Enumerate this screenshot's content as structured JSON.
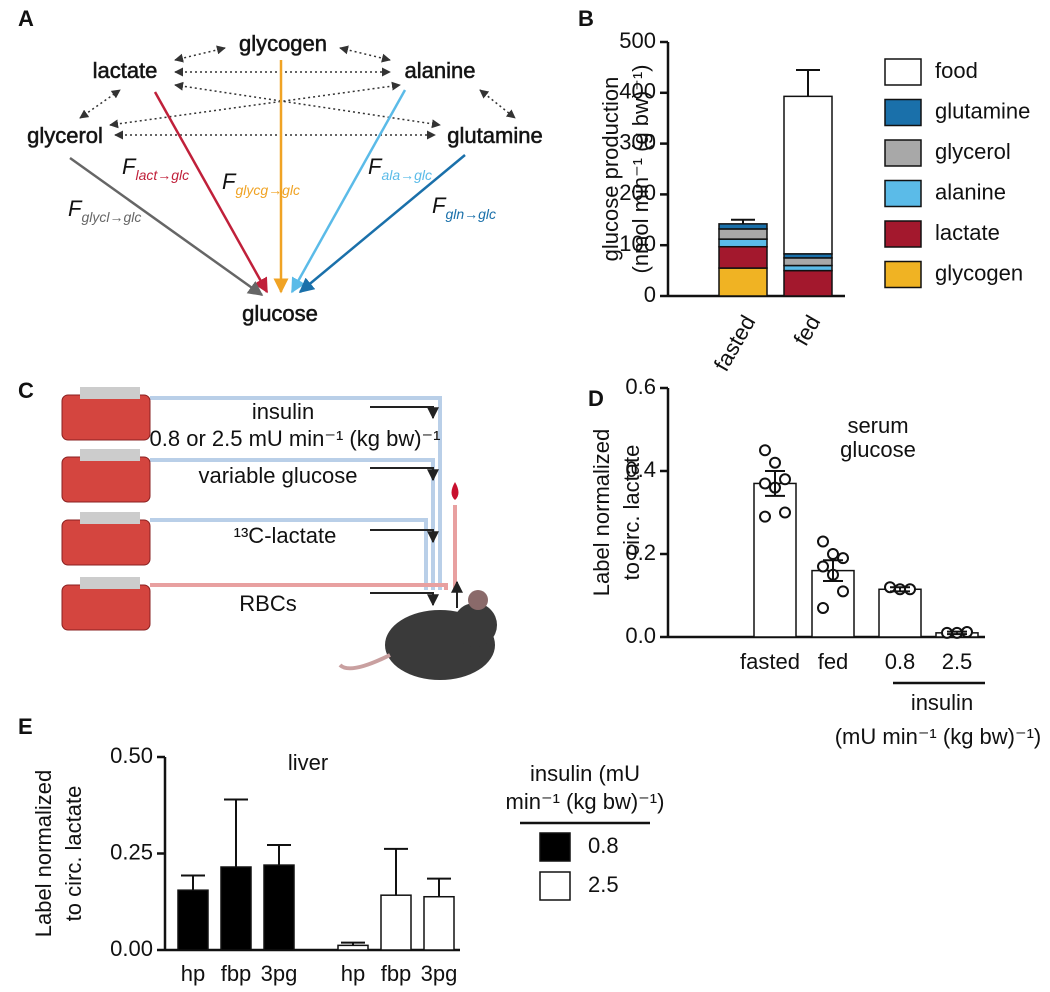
{
  "panel_labels": [
    "A",
    "B",
    "C",
    "D",
    "E"
  ],
  "diagram": {
    "nodes": [
      {
        "label": "glycogen",
        "color": "#c8961c"
      },
      {
        "label": "lactate",
        "color": "#a3182d"
      },
      {
        "label": "alanine",
        "color": "#4aa6cf"
      },
      {
        "label": "glycerol",
        "color": "#555555"
      },
      {
        "label": "glutamine",
        "color": "#1b5f8c"
      },
      {
        "label": "glucose",
        "color": "#8a4a7e"
      }
    ],
    "fluxes": [
      {
        "symbol": "F",
        "subscript": "lact→glc",
        "color": "#c0203a"
      },
      {
        "symbol": "F",
        "subscript": "glycg→glc",
        "color": "#f0a324"
      },
      {
        "symbol": "F",
        "subscript": "ala→glc",
        "color": "#5bbbe8"
      },
      {
        "symbol": "F",
        "subscript": "gln→glc",
        "color": "#1a70aa"
      },
      {
        "symbol": "F",
        "subscript": "glycl→glc",
        "color": "#666666"
      }
    ]
  },
  "setup": {
    "labels": [
      "insulin",
      "0.8 or 2.5 mU min⁻¹ (kg bw)⁻¹",
      "variable glucose",
      "¹³C-lactate",
      "RBCs"
    ]
  },
  "chart_data": [
    {
      "type": "stacked_bar",
      "ylabel": [
        "glucose production",
        "(nmol min⁻¹ (g bw)⁻¹)"
      ],
      "categories": [
        "fasted",
        "fed"
      ],
      "series": [
        {
          "name": "food",
          "color": "#ffffff",
          "values": [
            0,
            310
          ],
          "errors": [
            8,
            52
          ]
        },
        {
          "name": "glutamine",
          "color": "#1a70aa",
          "values": [
            10,
            8
          ]
        },
        {
          "name": "glycerol",
          "color": "#a8a8a8",
          "values": [
            20,
            15
          ]
        },
        {
          "name": "alanine",
          "color": "#5bbbe8",
          "values": [
            15,
            10
          ]
        },
        {
          "name": "lactate",
          "color": "#a3182d",
          "values": [
            42,
            50
          ]
        },
        {
          "name": "glycogen",
          "color": "#f0b323",
          "values": [
            55,
            0
          ]
        }
      ],
      "ylim": [
        0,
        500
      ],
      "yticks": [
        0,
        100,
        200,
        300,
        400,
        500
      ]
    },
    {
      "type": "bar",
      "title": [
        "serum",
        "glucose"
      ],
      "ylabel": [
        "Label normalized",
        "to circ. lactate"
      ],
      "categories": [
        "fasted",
        "fed",
        "0.8",
        "2.5"
      ],
      "values": [
        0.37,
        0.16,
        0.115,
        0.01
      ],
      "errors": [
        0.03,
        0.025,
        0.005,
        0.003
      ],
      "color": "#ffffff",
      "points": [
        [
          0.45,
          0.42,
          0.38,
          0.37,
          0.36,
          0.3,
          0.29
        ],
        [
          0.23,
          0.2,
          0.19,
          0.17,
          0.15,
          0.11,
          0.07
        ],
        [
          0.12,
          0.115,
          0.115
        ],
        [
          0.01,
          0.01,
          0.012
        ]
      ],
      "group_label": [
        "insulin",
        "(mU min⁻¹ (kg bw)⁻¹)"
      ],
      "ylim": [
        0,
        0.6
      ],
      "yticks": [
        {
          "value": 0,
          "label": "0.0"
        },
        0.2,
        0.4,
        0.6
      ]
    },
    {
      "type": "grouped_bar",
      "title": "liver",
      "ylabel": [
        "Label normalized",
        "to circ. lactate"
      ],
      "categories": [
        "hp",
        "fbp",
        "3pg"
      ],
      "legend_title": [
        "insulin (mU",
        "min⁻¹ (kg bw)⁻¹)"
      ],
      "series": [
        {
          "name": "0.8",
          "color": "#000000",
          "values": [
            0.155,
            0.215,
            0.22
          ],
          "errors": [
            0.038,
            0.175,
            0.052
          ]
        },
        {
          "name": "2.5",
          "color": "#ffffff",
          "values": [
            0.012,
            0.142,
            0.138
          ],
          "errors": [
            0.007,
            0.12,
            0.047
          ]
        }
      ],
      "ylim": [
        0,
        0.5
      ],
      "yticks": [
        {
          "value": 0,
          "label": "0.00"
        },
        {
          "value": 0.25,
          "label": "0.25"
        },
        {
          "value": 0.5,
          "label": "0.50"
        }
      ]
    }
  ]
}
